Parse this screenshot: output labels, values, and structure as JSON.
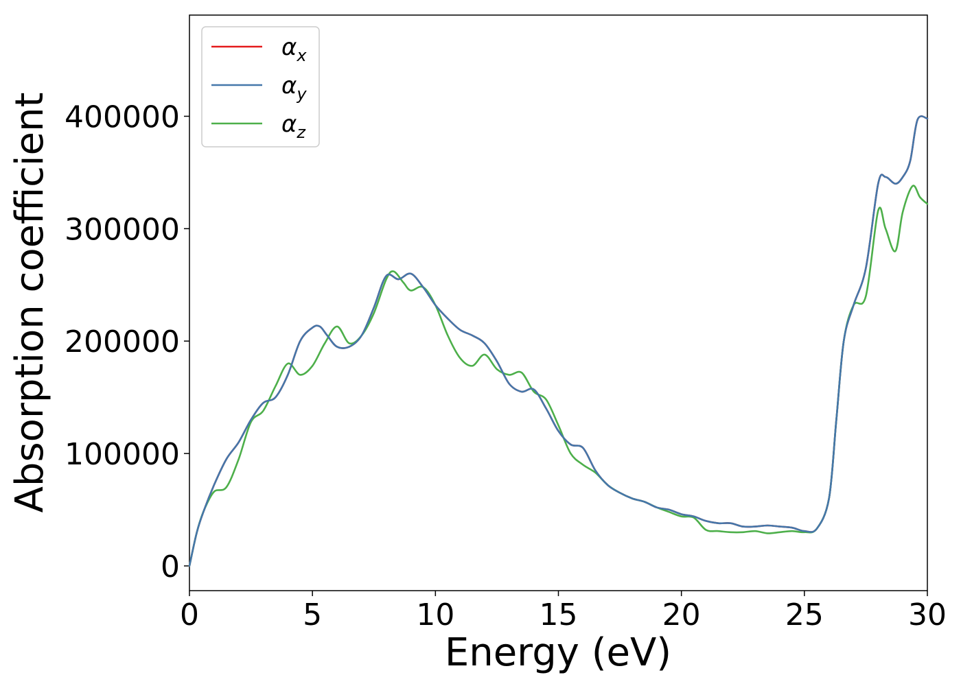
{
  "chart_data": {
    "type": "line",
    "title": "",
    "xlabel": "Energy (eV)",
    "ylabel": "Absorption coefficient",
    "xlim": [
      0,
      30
    ],
    "ylim": [
      -22000,
      490000
    ],
    "xticks": [
      0,
      5,
      10,
      15,
      20,
      25,
      30
    ],
    "xtick_labels": [
      "0",
      "5",
      "10",
      "15",
      "20",
      "25",
      "30"
    ],
    "yticks": [
      0,
      100000,
      200000,
      300000,
      400000
    ],
    "ytick_labels": [
      "0",
      "100000",
      "200000",
      "300000",
      "400000"
    ],
    "grid": false,
    "legend_position": "top-left",
    "series": [
      {
        "name": "α",
        "subscript": "x",
        "color": "#e41a1c",
        "x": [
          0,
          0.3,
          0.6,
          1.0,
          1.5,
          2.0,
          2.5,
          3.0,
          3.5,
          4.0,
          4.5,
          5.0,
          5.3,
          5.6,
          6.0,
          6.5,
          7.0,
          7.5,
          8.0,
          8.5,
          9.0,
          9.5,
          10.0,
          10.5,
          11.0,
          11.5,
          12.0,
          12.5,
          13.0,
          13.5,
          14.0,
          14.5,
          15.0,
          15.5,
          16.0,
          16.5,
          17.0,
          17.5,
          18.0,
          18.5,
          19.0,
          19.5,
          20.0,
          20.5,
          21.0,
          21.5,
          22.0,
          22.5,
          23.0,
          23.5,
          24.0,
          24.5,
          25.0,
          25.5,
          26.0,
          26.3,
          26.6,
          27.0,
          27.5,
          28.0,
          28.3,
          28.7,
          29.0,
          29.3,
          29.6,
          30.0
        ],
        "y": [
          0,
          30000,
          50000,
          72000,
          95000,
          110000,
          130000,
          145000,
          150000,
          170000,
          200000,
          212000,
          213000,
          205000,
          195000,
          195000,
          205000,
          230000,
          258000,
          255000,
          260000,
          248000,
          232000,
          220000,
          210000,
          205000,
          198000,
          182000,
          162000,
          155000,
          157000,
          140000,
          120000,
          108000,
          105000,
          85000,
          72000,
          65000,
          60000,
          57000,
          52000,
          50000,
          46000,
          44000,
          40000,
          38000,
          38000,
          35000,
          35000,
          36000,
          35000,
          34000,
          31000,
          33000,
          60000,
          130000,
          200000,
          232000,
          265000,
          340000,
          346000,
          340000,
          346000,
          360000,
          397000,
          398000
        ]
      },
      {
        "name": "α",
        "subscript": "y",
        "color": "#4477aa",
        "x": [
          0,
          0.3,
          0.6,
          1.0,
          1.5,
          2.0,
          2.5,
          3.0,
          3.5,
          4.0,
          4.5,
          5.0,
          5.3,
          5.6,
          6.0,
          6.5,
          7.0,
          7.5,
          8.0,
          8.5,
          9.0,
          9.5,
          10.0,
          10.5,
          11.0,
          11.5,
          12.0,
          12.5,
          13.0,
          13.5,
          14.0,
          14.5,
          15.0,
          15.5,
          16.0,
          16.5,
          17.0,
          17.5,
          18.0,
          18.5,
          19.0,
          19.5,
          20.0,
          20.5,
          21.0,
          21.5,
          22.0,
          22.5,
          23.0,
          23.5,
          24.0,
          24.5,
          25.0,
          25.5,
          26.0,
          26.3,
          26.6,
          27.0,
          27.5,
          28.0,
          28.3,
          28.7,
          29.0,
          29.3,
          29.6,
          30.0
        ],
        "y": [
          0,
          30000,
          50000,
          72000,
          95000,
          110000,
          130000,
          145000,
          150000,
          170000,
          200000,
          212000,
          213000,
          205000,
          195000,
          195000,
          205000,
          230000,
          258000,
          255000,
          260000,
          248000,
          232000,
          220000,
          210000,
          205000,
          198000,
          182000,
          162000,
          155000,
          157000,
          140000,
          120000,
          108000,
          105000,
          85000,
          72000,
          65000,
          60000,
          57000,
          52000,
          50000,
          46000,
          44000,
          40000,
          38000,
          38000,
          35000,
          35000,
          36000,
          35000,
          34000,
          31000,
          33000,
          60000,
          130000,
          200000,
          232000,
          265000,
          340000,
          346000,
          340000,
          346000,
          360000,
          397000,
          398000
        ]
      },
      {
        "name": "α",
        "subscript": "z",
        "color": "#4daf4a",
        "x": [
          0,
          0.3,
          0.6,
          1.0,
          1.5,
          2.0,
          2.5,
          3.0,
          3.5,
          4.0,
          4.5,
          5.0,
          5.5,
          6.0,
          6.5,
          7.0,
          7.5,
          8.0,
          8.3,
          8.7,
          9.0,
          9.5,
          10.0,
          10.5,
          11.0,
          11.5,
          12.0,
          12.5,
          13.0,
          13.5,
          14.0,
          14.5,
          15.0,
          15.5,
          16.0,
          16.5,
          17.0,
          17.5,
          18.0,
          18.5,
          19.0,
          19.5,
          20.0,
          20.5,
          21.0,
          21.5,
          22.0,
          22.5,
          23.0,
          23.5,
          24.0,
          24.5,
          25.0,
          25.5,
          26.0,
          26.3,
          26.6,
          27.0,
          27.5,
          28.0,
          28.3,
          28.7,
          29.0,
          29.4,
          29.7,
          30.0
        ],
        "y": [
          0,
          30000,
          50000,
          66000,
          70000,
          95000,
          128000,
          138000,
          160000,
          180000,
          170000,
          178000,
          198000,
          213000,
          198000,
          205000,
          225000,
          255000,
          262000,
          252000,
          245000,
          248000,
          232000,
          205000,
          185000,
          178000,
          188000,
          175000,
          170000,
          172000,
          155000,
          148000,
          125000,
          100000,
          90000,
          83000,
          72000,
          65000,
          60000,
          57000,
          52000,
          48000,
          44000,
          43000,
          32000,
          31000,
          30000,
          30000,
          31000,
          29000,
          30000,
          31000,
          30000,
          33000,
          60000,
          130000,
          200000,
          232000,
          240000,
          316000,
          300000,
          280000,
          315000,
          338000,
          328000,
          322000
        ]
      }
    ]
  }
}
